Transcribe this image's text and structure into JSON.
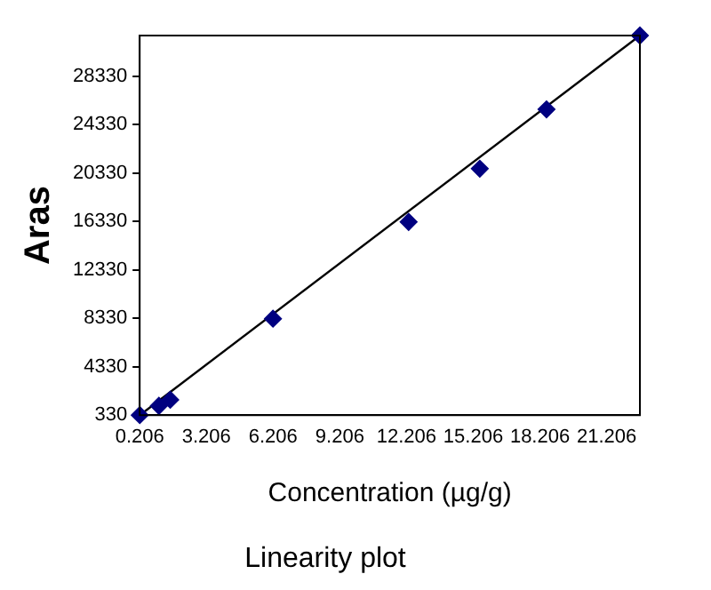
{
  "chart_data": {
    "type": "scatter",
    "title": "Linearity plot",
    "xlabel": "Concentration (µg/g)",
    "ylabel": "Aras",
    "series": [
      {
        "color": "#000080",
        "marker": "diamond",
        "x": [
          0.21,
          1.07,
          1.58,
          6.2,
          12.3,
          15.5,
          18.5,
          22.7
        ],
        "values": [
          330,
          1100,
          1600,
          8300,
          16300,
          20700,
          25600,
          31700
        ]
      },
      {
        "type": "line",
        "color": "#000000",
        "marker": "none",
        "x": [
          0.21,
          22.7
        ],
        "values": [
          330,
          31700
        ]
      }
    ],
    "xlim": [
      0.206,
      22.7
    ],
    "xticks": [
      0.206,
      3.206,
      6.206,
      9.206,
      12.206,
      15.206,
      18.206,
      21.206
    ],
    "ylim": [
      330,
      31700
    ],
    "yticks": [
      330,
      4330,
      8330,
      12330,
      16330,
      20330,
      24330,
      28330
    ],
    "grid": false,
    "legend": false
  }
}
